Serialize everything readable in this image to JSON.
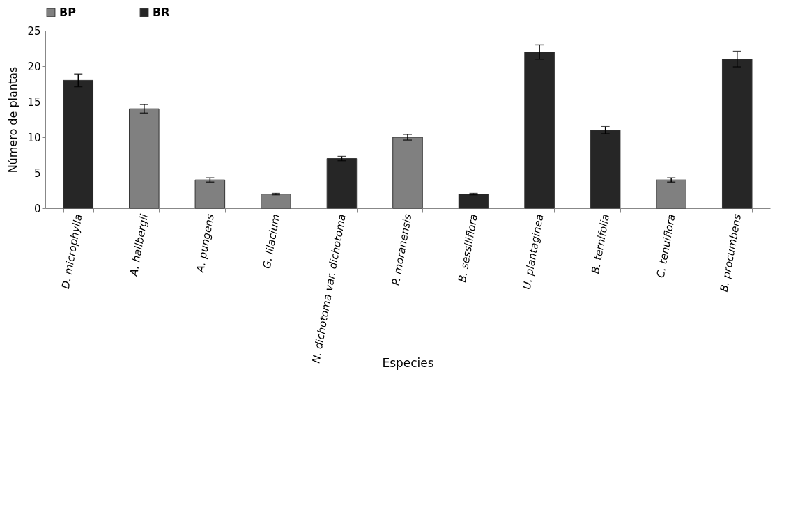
{
  "chart_data": {
    "type": "bar",
    "xlabel": "Especies",
    "ylabel": "Número de plantas",
    "categories": [
      "D. microphylla",
      "A. hallbergii",
      "A. pungens",
      "G. lilacium",
      "N. dichotoma var. dichotoma",
      "P. moranensis",
      "B. sessiliflora",
      "U. plantaginea",
      "B. ternifolia",
      "C. tenuiflora",
      "B. procumbens"
    ],
    "series": [
      {
        "name": "BP",
        "color": "#808080",
        "values": [
          null,
          14,
          4,
          2,
          null,
          10,
          null,
          null,
          null,
          4,
          null
        ],
        "errors": [
          null,
          0.6,
          0.3,
          0.1,
          null,
          0.4,
          null,
          null,
          null,
          0.3,
          null
        ]
      },
      {
        "name": "BR",
        "color": "#262626",
        "values": [
          18,
          null,
          null,
          null,
          7,
          null,
          2,
          22,
          11,
          null,
          21
        ],
        "errors": [
          0.9,
          null,
          null,
          null,
          0.3,
          null,
          0.1,
          1.0,
          0.5,
          null,
          1.1
        ]
      }
    ],
    "ylim": [
      0,
      25
    ],
    "yticks": [
      0,
      5,
      10,
      15,
      20,
      25
    ],
    "grid": false,
    "legend": "top"
  }
}
